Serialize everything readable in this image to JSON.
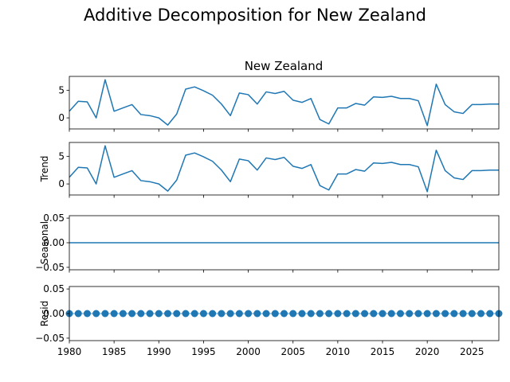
{
  "figure": {
    "suptitle": "Additive Decomposition for New Zealand",
    "panel_title": "New Zealand"
  },
  "colors": {
    "line": "#1f77b4",
    "axis": "#000000",
    "background": "#ffffff"
  },
  "chart_data": [
    {
      "type": "line",
      "panel": "observed",
      "title": "New Zealand",
      "ylabel": "",
      "x": [
        1980,
        1981,
        1982,
        1983,
        1984,
        1985,
        1986,
        1987,
        1988,
        1989,
        1990,
        1991,
        1992,
        1993,
        1994,
        1995,
        1996,
        1997,
        1998,
        1999,
        2000,
        2001,
        2002,
        2003,
        2004,
        2005,
        2006,
        2007,
        2008,
        2009,
        2010,
        2011,
        2012,
        2013,
        2014,
        2015,
        2016,
        2017,
        2018,
        2019,
        2020,
        2021,
        2022,
        2023,
        2024,
        2025,
        2026,
        2027,
        2028
      ],
      "values": [
        1.2,
        3.0,
        2.9,
        0.0,
        6.9,
        1.2,
        1.8,
        2.4,
        0.6,
        0.4,
        0.0,
        -1.3,
        0.7,
        5.2,
        5.6,
        4.9,
        4.1,
        2.5,
        0.4,
        4.5,
        4.2,
        2.5,
        4.7,
        4.4,
        4.8,
        3.2,
        2.8,
        3.5,
        -0.3,
        -1.1,
        1.8,
        1.8,
        2.6,
        2.3,
        3.8,
        3.7,
        3.9,
        3.5,
        3.5,
        3.1,
        -1.4,
        6.1,
        2.4,
        1.1,
        0.8,
        2.4,
        2.4,
        2.5,
        2.5
      ],
      "xlim": [
        1980,
        2028
      ],
      "ylim": [
        -2.0,
        7.5
      ],
      "yticks": [
        0,
        5
      ],
      "ytick_labels": [
        "0",
        "5"
      ]
    },
    {
      "type": "line",
      "panel": "trend",
      "ylabel": "Trend",
      "x": [
        1980,
        1981,
        1982,
        1983,
        1984,
        1985,
        1986,
        1987,
        1988,
        1989,
        1990,
        1991,
        1992,
        1993,
        1994,
        1995,
        1996,
        1997,
        1998,
        1999,
        2000,
        2001,
        2002,
        2003,
        2004,
        2005,
        2006,
        2007,
        2008,
        2009,
        2010,
        2011,
        2012,
        2013,
        2014,
        2015,
        2016,
        2017,
        2018,
        2019,
        2020,
        2021,
        2022,
        2023,
        2024,
        2025,
        2026,
        2027,
        2028
      ],
      "values": [
        1.2,
        3.0,
        2.9,
        0.0,
        6.9,
        1.2,
        1.8,
        2.4,
        0.6,
        0.4,
        0.0,
        -1.3,
        0.7,
        5.2,
        5.6,
        4.9,
        4.1,
        2.5,
        0.4,
        4.5,
        4.2,
        2.5,
        4.7,
        4.4,
        4.8,
        3.2,
        2.8,
        3.5,
        -0.3,
        -1.1,
        1.8,
        1.8,
        2.6,
        2.3,
        3.8,
        3.7,
        3.9,
        3.5,
        3.5,
        3.1,
        -1.4,
        6.1,
        2.4,
        1.1,
        0.8,
        2.4,
        2.4,
        2.5,
        2.5
      ],
      "xlim": [
        1980,
        2028
      ],
      "ylim": [
        -2.0,
        7.5
      ],
      "yticks": [
        0,
        5
      ],
      "ytick_labels": [
        "0",
        "5"
      ]
    },
    {
      "type": "line",
      "panel": "seasonal",
      "ylabel": "Seasonal",
      "x": [
        1980,
        2028
      ],
      "values": [
        0.0,
        0.0
      ],
      "xlim": [
        1980,
        2028
      ],
      "ylim": [
        -0.055,
        0.055
      ],
      "yticks": [
        -0.05,
        0.0,
        0.05
      ],
      "ytick_labels": [
        "−0.05",
        "0.00",
        "0.05"
      ]
    },
    {
      "type": "scatter",
      "panel": "resid",
      "ylabel": "Resid",
      "x": [
        1980,
        1981,
        1982,
        1983,
        1984,
        1985,
        1986,
        1987,
        1988,
        1989,
        1990,
        1991,
        1992,
        1993,
        1994,
        1995,
        1996,
        1997,
        1998,
        1999,
        2000,
        2001,
        2002,
        2003,
        2004,
        2005,
        2006,
        2007,
        2008,
        2009,
        2010,
        2011,
        2012,
        2013,
        2014,
        2015,
        2016,
        2017,
        2018,
        2019,
        2020,
        2021,
        2022,
        2023,
        2024,
        2025,
        2026,
        2027,
        2028
      ],
      "values": [
        0,
        0,
        0,
        0,
        0,
        0,
        0,
        0,
        0,
        0,
        0,
        0,
        0,
        0,
        0,
        0,
        0,
        0,
        0,
        0,
        0,
        0,
        0,
        0,
        0,
        0,
        0,
        0,
        0,
        0,
        0,
        0,
        0,
        0,
        0,
        0,
        0,
        0,
        0,
        0,
        0,
        0,
        0,
        0,
        0,
        0,
        0,
        0,
        0
      ],
      "xlim": [
        1980,
        2028
      ],
      "ylim": [
        -0.055,
        0.055
      ],
      "yticks": [
        -0.05,
        0.0,
        0.05
      ],
      "ytick_labels": [
        "−0.05",
        "0.00",
        "0.05"
      ],
      "xticks": [
        1980,
        1985,
        1990,
        1995,
        2000,
        2005,
        2010,
        2015,
        2020,
        2025
      ],
      "xtick_labels": [
        "1980",
        "1985",
        "1990",
        "1995",
        "2000",
        "2005",
        "2010",
        "2015",
        "2020",
        "2025"
      ]
    }
  ]
}
